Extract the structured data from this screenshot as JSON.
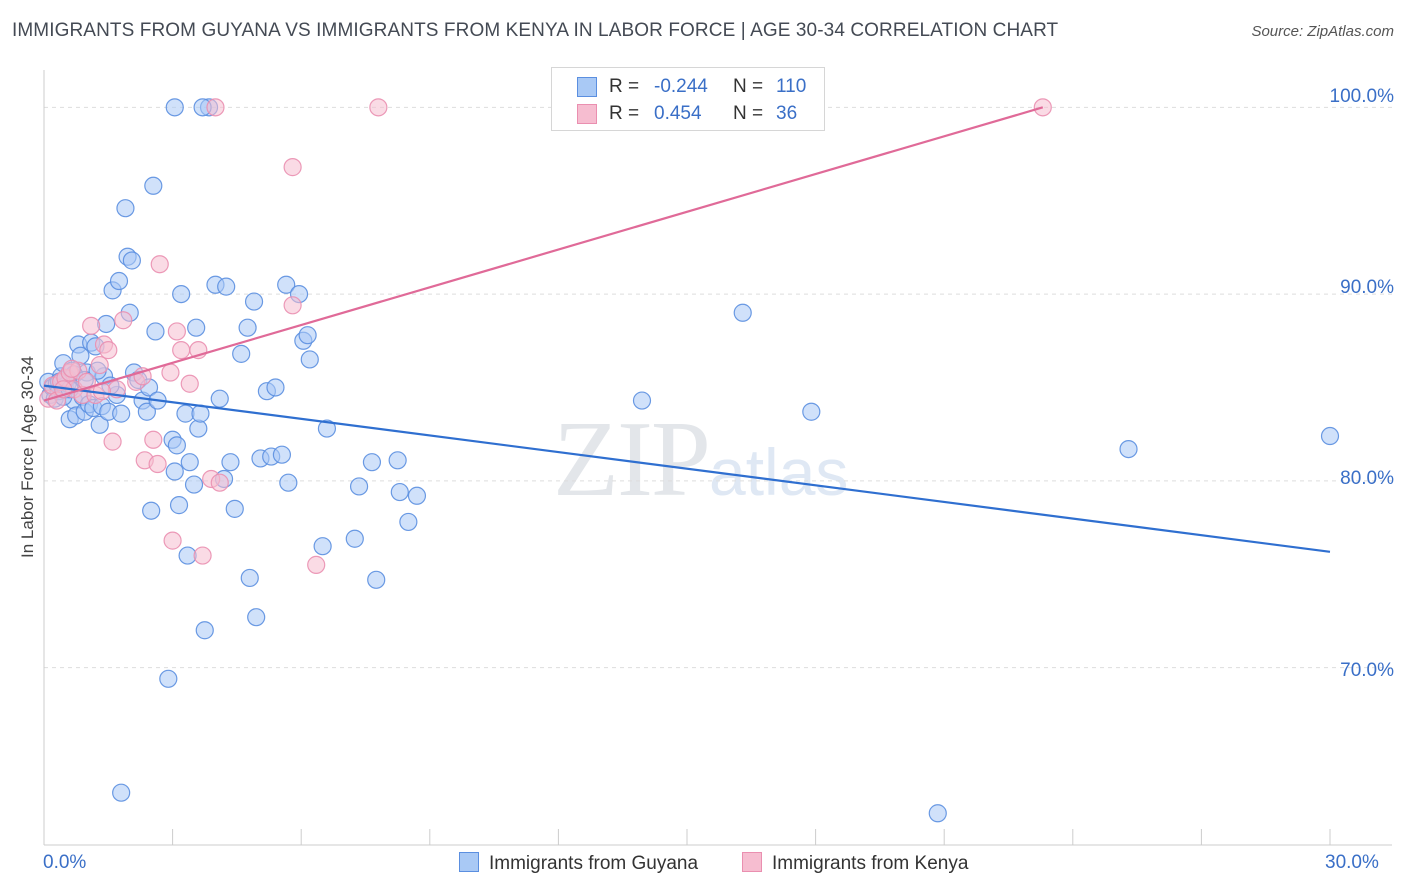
{
  "title": "IMMIGRANTS FROM GUYANA VS IMMIGRANTS FROM KENYA IN LABOR FORCE | AGE 30-34 CORRELATION CHART",
  "source": "Source: ZipAtlas.com",
  "watermark": {
    "zip": "ZIP",
    "atlas": "atlas"
  },
  "colors": {
    "guyana_fill": "#a9c9f5",
    "guyana_stroke": "#5b8fe0",
    "guyana_line": "#2f6fd0",
    "kenya_fill": "#f6bdd0",
    "kenya_stroke": "#ea8fb0",
    "kenya_line": "#e06a98",
    "tick_text": "#3a6fc7",
    "grid": "#dddddd"
  },
  "legend": {
    "r_label": "R =",
    "n_label": "N =",
    "rows": [
      {
        "r": "-0.244",
        "n": "110"
      },
      {
        "r": "0.454",
        "n": "36"
      }
    ]
  },
  "chart_data": {
    "type": "scatter",
    "title": "IMMIGRANTS FROM GUYANA VS IMMIGRANTS FROM KENYA IN LABOR FORCE | AGE 30-34 CORRELATION CHART",
    "xlabel": "",
    "ylabel": "In Labor Force | Age 30-34",
    "xlim": [
      0,
      30
    ],
    "ylim": [
      60.5,
      102
    ],
    "x_tick_labels": [
      "0.0%",
      "30.0%"
    ],
    "y_ticks": [
      70,
      80,
      90,
      100
    ],
    "y_tick_labels": [
      "70.0%",
      "80.0%",
      "90.0%",
      "100.0%"
    ],
    "legend_position": "top-center",
    "series": [
      {
        "name": "Immigrants from Guyana",
        "r": -0.244,
        "n": 110,
        "trend": {
          "x0": 0,
          "y0": 85.1,
          "x1": 30,
          "y1": 76.2
        },
        "points": [
          [
            0.1,
            85.3
          ],
          [
            0.15,
            84.6
          ],
          [
            0.2,
            85.0
          ],
          [
            0.25,
            84.4
          ],
          [
            0.3,
            85.2
          ],
          [
            0.35,
            84.8
          ],
          [
            0.4,
            85.6
          ],
          [
            0.45,
            86.3
          ],
          [
            0.5,
            84.9
          ],
          [
            0.55,
            85.5
          ],
          [
            0.6,
            83.3
          ],
          [
            0.65,
            85.9
          ],
          [
            0.7,
            84.3
          ],
          [
            0.75,
            83.5
          ],
          [
            0.8,
            87.3
          ],
          [
            0.85,
            86.7
          ],
          [
            0.9,
            84.5
          ],
          [
            0.95,
            83.7
          ],
          [
            1.0,
            85.8
          ],
          [
            1.05,
            84.1
          ],
          [
            1.1,
            87.4
          ],
          [
            1.15,
            83.9
          ],
          [
            1.2,
            87.2
          ],
          [
            1.3,
            83.0
          ],
          [
            1.35,
            84.0
          ],
          [
            1.4,
            85.6
          ],
          [
            1.45,
            88.4
          ],
          [
            1.5,
            83.7
          ],
          [
            1.6,
            90.2
          ],
          [
            1.7,
            84.6
          ],
          [
            1.75,
            90.7
          ],
          [
            1.8,
            83.6
          ],
          [
            1.9,
            94.6
          ],
          [
            1.95,
            92.0
          ],
          [
            2.0,
            89.0
          ],
          [
            2.05,
            91.8
          ],
          [
            2.1,
            85.8
          ],
          [
            2.2,
            85.4
          ],
          [
            2.3,
            84.3
          ],
          [
            2.4,
            83.7
          ],
          [
            2.45,
            85.0
          ],
          [
            2.5,
            78.4
          ],
          [
            2.6,
            88.0
          ],
          [
            2.65,
            84.3
          ],
          [
            2.55,
            95.8
          ],
          [
            2.9,
            69.4
          ],
          [
            3.0,
            82.2
          ],
          [
            3.05,
            80.5
          ],
          [
            3.1,
            81.9
          ],
          [
            3.15,
            78.7
          ],
          [
            3.2,
            90.0
          ],
          [
            3.3,
            83.6
          ],
          [
            3.35,
            76.0
          ],
          [
            3.4,
            81.0
          ],
          [
            3.5,
            79.8
          ],
          [
            3.55,
            88.2
          ],
          [
            3.6,
            82.8
          ],
          [
            3.65,
            83.6
          ],
          [
            3.75,
            72.0
          ],
          [
            3.85,
            100
          ],
          [
            4.0,
            90.5
          ],
          [
            4.1,
            84.4
          ],
          [
            4.2,
            80.1
          ],
          [
            4.25,
            90.4
          ],
          [
            4.35,
            81.0
          ],
          [
            4.45,
            78.5
          ],
          [
            4.6,
            86.8
          ],
          [
            4.75,
            88.2
          ],
          [
            4.8,
            74.8
          ],
          [
            4.9,
            89.6
          ],
          [
            4.95,
            72.7
          ],
          [
            5.05,
            81.2
          ],
          [
            5.2,
            84.8
          ],
          [
            5.3,
            81.3
          ],
          [
            5.4,
            85.0
          ],
          [
            5.55,
            81.4
          ],
          [
            5.65,
            90.5
          ],
          [
            5.7,
            79.9
          ],
          [
            5.95,
            90.0
          ],
          [
            6.05,
            87.5
          ],
          [
            6.15,
            87.8
          ],
          [
            6.2,
            86.5
          ],
          [
            6.5,
            76.5
          ],
          [
            6.6,
            82.8
          ],
          [
            7.25,
            76.9
          ],
          [
            7.35,
            79.7
          ],
          [
            7.65,
            81.0
          ],
          [
            7.75,
            74.7
          ],
          [
            8.25,
            81.1
          ],
          [
            8.3,
            79.4
          ],
          [
            8.5,
            77.8
          ],
          [
            8.7,
            79.2
          ],
          [
            13.95,
            84.3
          ],
          [
            16.3,
            89.0
          ],
          [
            17.9,
            83.7
          ],
          [
            20.85,
            62.2
          ],
          [
            25.3,
            81.7
          ],
          [
            30.0,
            82.4
          ],
          [
            1.8,
            63.3
          ],
          [
            3.05,
            100
          ],
          [
            3.7,
            100
          ],
          [
            0.45,
            84.5
          ],
          [
            0.55,
            85.2
          ],
          [
            0.7,
            85.7
          ],
          [
            1.25,
            85.9
          ],
          [
            1.55,
            85.1
          ],
          [
            0.35,
            85.3
          ],
          [
            0.6,
            84.9
          ],
          [
            0.95,
            85.4
          ]
        ]
      },
      {
        "name": "Immigrants from Kenya",
        "r": 0.454,
        "n": 36,
        "trend": {
          "x0": 0,
          "y0": 84.3,
          "x1": 23.3,
          "y1": 100
        },
        "points": [
          [
            0.1,
            84.4
          ],
          [
            0.2,
            85.1
          ],
          [
            0.3,
            84.3
          ],
          [
            0.4,
            85.3
          ],
          [
            0.5,
            85.5
          ],
          [
            0.6,
            85.8
          ],
          [
            0.7,
            84.9
          ],
          [
            0.8,
            85.9
          ],
          [
            0.9,
            84.6
          ],
          [
            1.0,
            85.3
          ],
          [
            1.1,
            88.3
          ],
          [
            1.2,
            84.6
          ],
          [
            1.3,
            86.2
          ],
          [
            1.4,
            87.3
          ],
          [
            1.5,
            87.0
          ],
          [
            1.6,
            82.1
          ],
          [
            1.7,
            84.9
          ],
          [
            1.85,
            88.6
          ],
          [
            2.15,
            85.3
          ],
          [
            2.3,
            85.6
          ],
          [
            2.35,
            81.1
          ],
          [
            2.55,
            82.2
          ],
          [
            2.65,
            80.9
          ],
          [
            2.7,
            91.6
          ],
          [
            2.95,
            85.8
          ],
          [
            3.0,
            76.8
          ],
          [
            3.1,
            88.0
          ],
          [
            3.2,
            87.0
          ],
          [
            3.4,
            85.2
          ],
          [
            3.6,
            87.0
          ],
          [
            3.7,
            76.0
          ],
          [
            3.9,
            80.1
          ],
          [
            4.1,
            79.9
          ],
          [
            4.0,
            100
          ],
          [
            5.8,
            89.4
          ],
          [
            5.8,
            96.8
          ],
          [
            6.35,
            75.5
          ],
          [
            7.8,
            100
          ],
          [
            23.3,
            100
          ],
          [
            0.65,
            86.0
          ],
          [
            1.35,
            84.8
          ],
          [
            0.45,
            84.9
          ]
        ]
      }
    ]
  },
  "bottom_legend": [
    "Immigrants from Guyana",
    "Immigrants from Kenya"
  ]
}
